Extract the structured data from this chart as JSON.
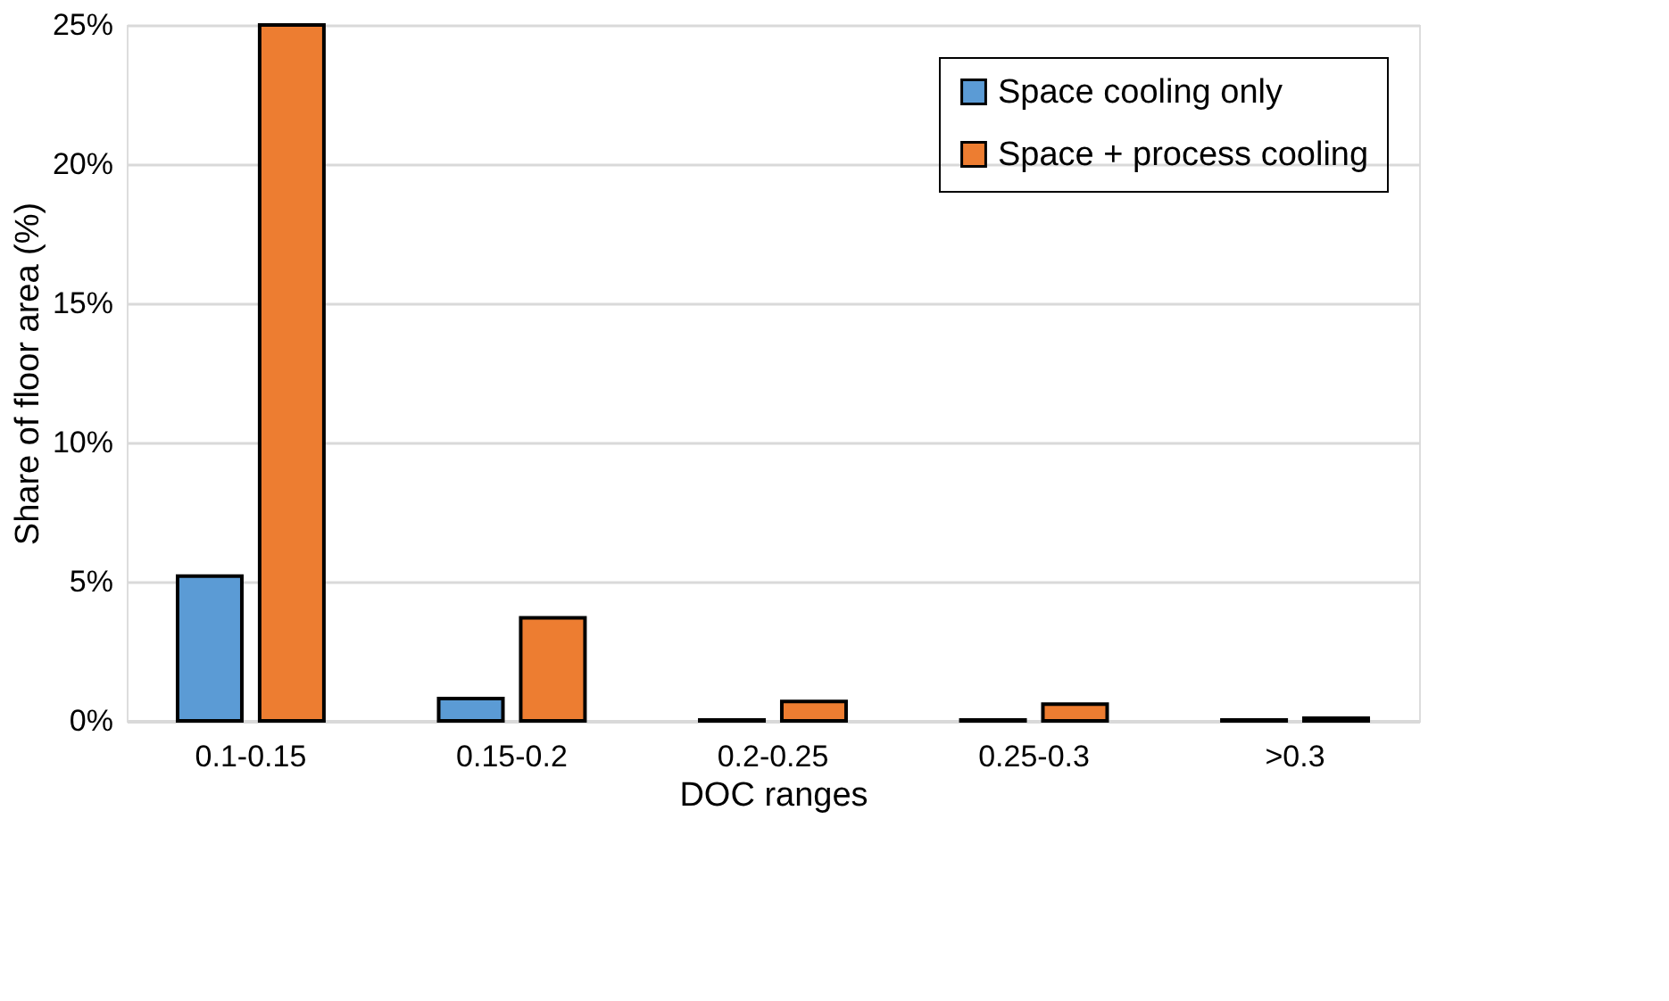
{
  "chart_data": {
    "type": "bar",
    "xlabel": "DOC ranges",
    "ylabel": "Share of floor area (%)",
    "categories": [
      "0.1-0.15",
      "0.15-0.2",
      "0.2-0.25",
      "0.25-0.3",
      ">0.3"
    ],
    "series": [
      {
        "name": "Space cooling only",
        "color": "#5b9bd5",
        "values": [
          5.2,
          0.8,
          0.03,
          0.03,
          0.03
        ]
      },
      {
        "name": "Space + process cooling",
        "color": "#ed7d31",
        "values": [
          25,
          3.7,
          0.7,
          0.6,
          0.1
        ]
      }
    ],
    "ylim": [
      0,
      25
    ],
    "yticks": [
      {
        "value": 0,
        "label": "0%"
      },
      {
        "value": 5,
        "label": "5%"
      },
      {
        "value": 10,
        "label": "10%"
      },
      {
        "value": 15,
        "label": "15%"
      },
      {
        "value": 20,
        "label": "20%"
      },
      {
        "value": 25,
        "label": "25%"
      }
    ],
    "grid": "y",
    "legend": "top right"
  }
}
